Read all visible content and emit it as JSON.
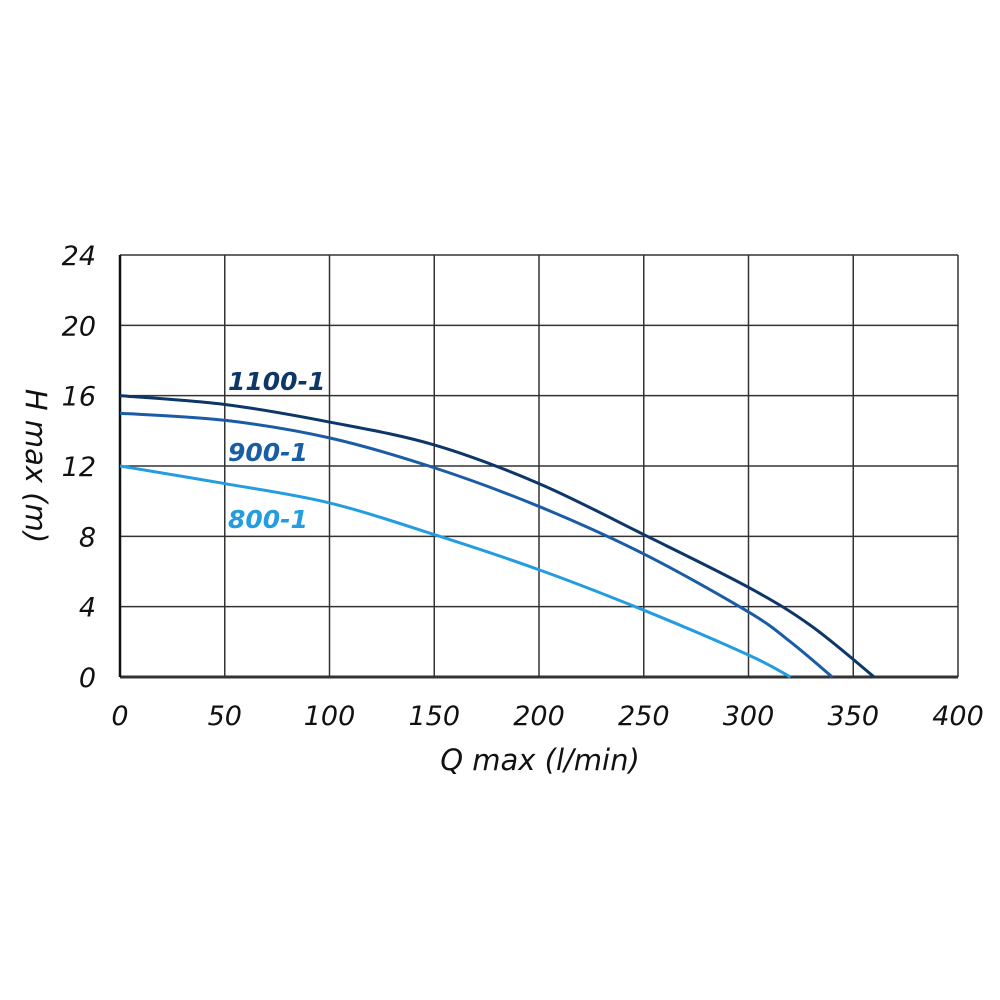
{
  "chart_data": {
    "type": "line",
    "title": "",
    "xlabel": "Q max (l/min)",
    "ylabel": "H max (m)",
    "xlim": [
      0,
      400
    ],
    "ylim": [
      0,
      24
    ],
    "xticks": [
      0,
      50,
      100,
      150,
      200,
      250,
      300,
      350,
      400
    ],
    "yticks": [
      0,
      4,
      8,
      12,
      16,
      20,
      24
    ],
    "grid": true,
    "series": [
      {
        "name": "1100-1",
        "color": "#0d3768",
        "x": [
          0,
          50,
          100,
          150,
          200,
          250,
          300,
          330,
          360
        ],
        "y": [
          16,
          15.5,
          14.5,
          13.2,
          11,
          8.1,
          5.1,
          2.9,
          0
        ]
      },
      {
        "name": "900-1",
        "color": "#1a5ca6",
        "x": [
          0,
          50,
          100,
          150,
          200,
          250,
          300,
          320,
          340
        ],
        "y": [
          15,
          14.6,
          13.6,
          11.9,
          9.7,
          7,
          3.7,
          2,
          0
        ]
      },
      {
        "name": "800-1",
        "color": "#239ddf",
        "x": [
          0,
          50,
          100,
          150,
          200,
          250,
          300,
          320
        ],
        "y": [
          12,
          11,
          9.9,
          8.1,
          6.1,
          3.8,
          1.25,
          0
        ]
      }
    ]
  }
}
